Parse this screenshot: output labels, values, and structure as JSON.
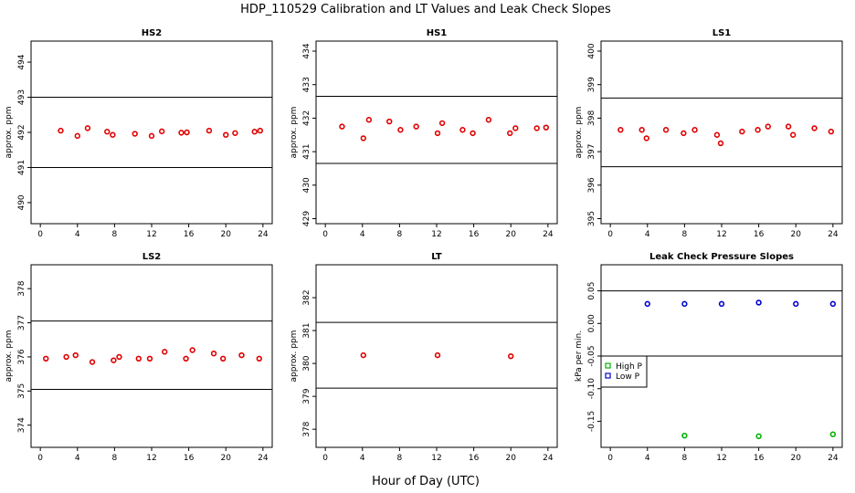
{
  "figure": {
    "title": "HDP_110529  Calibration and LT Values and Leak Check Slopes",
    "xlabel": "Hour of Day (UTC)"
  },
  "chart_data": [
    {
      "type": "scatter",
      "title": "HS2",
      "ylabel": "approx. ppm",
      "xlim": [
        -1,
        25
      ],
      "ylim": [
        489.4,
        494.6
      ],
      "xticks": [
        0,
        4,
        8,
        12,
        16,
        20,
        24
      ],
      "yticks": [
        490,
        491,
        492,
        493,
        494
      ],
      "hlines": [
        491,
        493
      ],
      "series": [
        {
          "name": "HS2",
          "color": "#e00000",
          "marker": "o",
          "x": [
            2.2,
            4.0,
            5.1,
            7.2,
            7.8,
            10.2,
            12.0,
            13.1,
            15.2,
            15.8,
            18.2,
            20.0,
            21.0,
            23.1,
            23.7
          ],
          "y": [
            492.05,
            491.9,
            492.12,
            492.02,
            491.93,
            491.96,
            491.9,
            492.03,
            491.99,
            492.0,
            492.05,
            491.93,
            491.98,
            492.02,
            492.05
          ]
        }
      ]
    },
    {
      "type": "scatter",
      "title": "HS1",
      "ylabel": "approx. ppm",
      "xlim": [
        -1,
        25
      ],
      "ylim": [
        428.85,
        434.3
      ],
      "xticks": [
        0,
        4,
        8,
        12,
        16,
        20,
        24
      ],
      "yticks": [
        429,
        430,
        431,
        432,
        433,
        434
      ],
      "hlines": [
        430.65,
        432.65
      ],
      "series": [
        {
          "name": "HS1",
          "color": "#e00000",
          "marker": "o",
          "x": [
            1.8,
            4.1,
            4.7,
            6.9,
            8.1,
            9.8,
            12.1,
            12.6,
            14.8,
            15.9,
            17.6,
            19.9,
            20.5,
            22.8,
            23.8
          ],
          "y": [
            431.75,
            431.4,
            431.95,
            431.9,
            431.65,
            431.75,
            431.55,
            431.85,
            431.65,
            431.55,
            431.95,
            431.55,
            431.7,
            431.7,
            431.72
          ]
        }
      ]
    },
    {
      "type": "scatter",
      "title": "LS1",
      "ylabel": "approx. ppm",
      "xlim": [
        -1,
        25
      ],
      "ylim": [
        394.85,
        400.3
      ],
      "xticks": [
        0,
        4,
        8,
        12,
        16,
        20,
        24
      ],
      "yticks": [
        395,
        396,
        397,
        398,
        399,
        400
      ],
      "hlines": [
        396.55,
        398.6
      ],
      "series": [
        {
          "name": "LS1",
          "color": "#e00000",
          "marker": "o",
          "x": [
            1.1,
            3.4,
            3.9,
            6.0,
            7.9,
            9.1,
            11.5,
            11.9,
            14.2,
            15.9,
            17.0,
            19.2,
            19.7,
            22.0,
            23.8
          ],
          "y": [
            397.65,
            397.65,
            397.4,
            397.65,
            397.55,
            397.65,
            397.5,
            397.25,
            397.6,
            397.65,
            397.75,
            397.75,
            397.5,
            397.7,
            397.6
          ]
        }
      ]
    },
    {
      "type": "scatter",
      "title": "LS2",
      "ylabel": "approx. ppm",
      "xlim": [
        -1,
        25
      ],
      "ylim": [
        373.35,
        378.7
      ],
      "xticks": [
        0,
        4,
        8,
        12,
        16,
        20,
        24
      ],
      "yticks": [
        374,
        375,
        376,
        377,
        378
      ],
      "hlines": [
        375.05,
        377.05
      ],
      "series": [
        {
          "name": "LS2",
          "color": "#e00000",
          "marker": "o",
          "x": [
            0.6,
            2.8,
            3.8,
            5.6,
            7.9,
            8.5,
            10.6,
            11.8,
            13.4,
            15.7,
            16.4,
            18.7,
            19.7,
            21.7,
            23.6
          ],
          "y": [
            375.95,
            376.0,
            376.05,
            375.85,
            375.9,
            376.0,
            375.95,
            375.95,
            376.15,
            375.95,
            376.2,
            376.1,
            375.95,
            376.05,
            375.95
          ]
        }
      ]
    },
    {
      "type": "scatter",
      "title": "LT",
      "ylabel": "approx. ppm",
      "xlim": [
        -1,
        25
      ],
      "ylim": [
        377.45,
        383.0
      ],
      "xticks": [
        0,
        4,
        8,
        12,
        16,
        20,
        24
      ],
      "yticks": [
        378,
        379,
        380,
        381,
        382
      ],
      "hlines": [
        379.25,
        381.25
      ],
      "series": [
        {
          "name": "LT",
          "color": "#e00000",
          "marker": "o",
          "x": [
            4.1,
            12.1,
            20.0
          ],
          "y": [
            380.25,
            380.25,
            380.22
          ]
        }
      ]
    },
    {
      "type": "scatter",
      "title": "Leak Check Pressure Slopes",
      "ylabel": "kPa per min.",
      "xlim": [
        -1,
        25
      ],
      "ylim": [
        -0.19,
        0.09
      ],
      "xticks": [
        0,
        4,
        8,
        12,
        16,
        20,
        24
      ],
      "yticks": [
        -0.15,
        -0.1,
        -0.05,
        0.0,
        0.05
      ],
      "ytick_labels": [
        "-0.15",
        "-0.10",
        "-0.05",
        "0.00",
        "0.05"
      ],
      "hlines": [
        0.05,
        -0.05
      ],
      "legend": {
        "position": "left",
        "entries": [
          "High P",
          "Low P"
        ]
      },
      "series": [
        {
          "name": "High P",
          "color": "#00b000",
          "marker": "o",
          "x": [
            8,
            16,
            24
          ],
          "y": [
            -0.172,
            -0.173,
            -0.17
          ]
        },
        {
          "name": "Low P",
          "color": "#0000cc",
          "marker": "o",
          "x": [
            4,
            8,
            12,
            16,
            20,
            24
          ],
          "y": [
            0.03,
            0.03,
            0.03,
            0.032,
            0.03,
            0.03
          ]
        }
      ]
    }
  ]
}
